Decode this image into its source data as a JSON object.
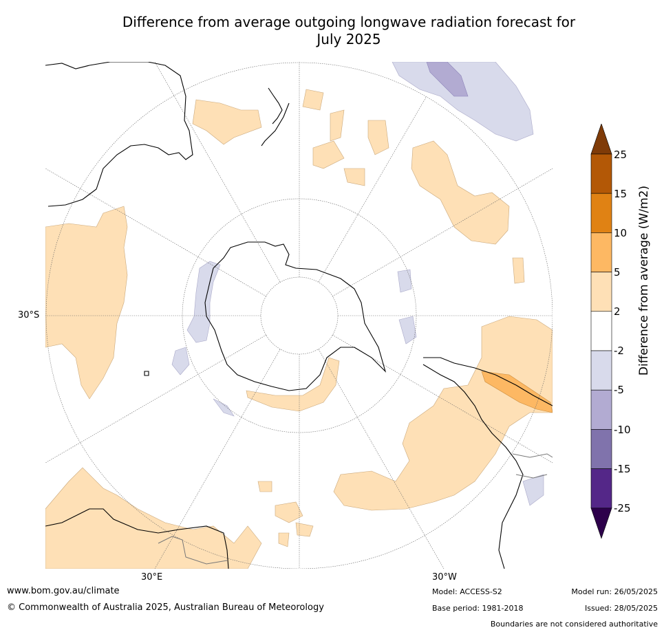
{
  "title_line1": "Difference from average outgoing longwave radiation forecast for",
  "title_line2": "July 2025",
  "map_labels": {
    "lat_30s": "30°S",
    "lon_30e": "30°E",
    "lon_30w": "30°W"
  },
  "colorbar": {
    "title": "Difference from average (W/m2)",
    "tick_labels": [
      "25",
      "15",
      "10",
      "5",
      "2",
      "-2",
      "-5",
      "-10",
      "-15",
      "-25"
    ],
    "bins": [
      {
        "range": "> 25",
        "color": "#7f3b08"
      },
      {
        "range": "15 to 25",
        "color": "#b35806"
      },
      {
        "range": "10 to 15",
        "color": "#e08214"
      },
      {
        "range": "5 to 10",
        "color": "#fdb863"
      },
      {
        "range": "2 to 5",
        "color": "#fee0b6"
      },
      {
        "range": "-2 to 2",
        "color": "#ffffff"
      },
      {
        "range": "-5 to -2",
        "color": "#d8daeb"
      },
      {
        "range": "-10 to -5",
        "color": "#b2abd2"
      },
      {
        "range": "-15 to -10",
        "color": "#8073ac"
      },
      {
        "range": "-25 to -15",
        "color": "#542788"
      },
      {
        "range": "< -25",
        "color": "#2d004b"
      }
    ]
  },
  "footer": {
    "url": "www.bom.gov.au/climate",
    "copyright": "© Commonwealth of Australia 2025, Australian Bureau of Meteorology",
    "model": "Model: ACCESS-S2",
    "base_period": "Base period: 1981-2018",
    "model_run": "Model run: 26/05/2025",
    "issued": "Issued: 28/05/2025",
    "disclaimer": "Boundaries are not considered authoritative"
  }
}
